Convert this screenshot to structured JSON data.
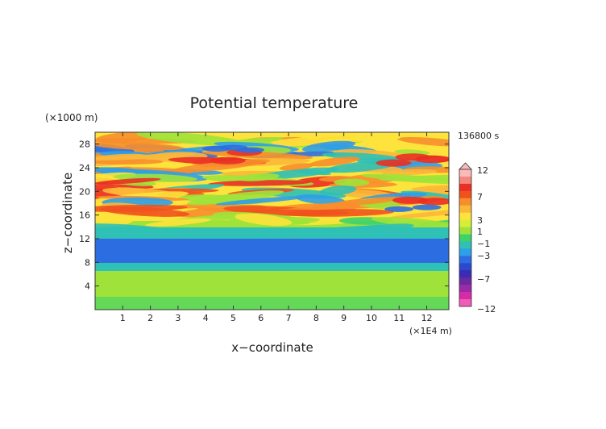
{
  "chart_data": {
    "type": "heatmap",
    "title": "Potential temperature",
    "xlabel": "x−coordinate",
    "ylabel": "z−coordinate",
    "x_unit": "(×1E4 m)",
    "y_unit": "(×1000 m)",
    "time_label": "136800 s",
    "xlim": [
      0,
      12.8
    ],
    "ylim": [
      0,
      30
    ],
    "x_ticks": [
      "1",
      "2",
      "3",
      "4",
      "5",
      "6",
      "7",
      "8",
      "9",
      "10",
      "11",
      "12"
    ],
    "y_ticks": [
      "4",
      "8",
      "12",
      "16",
      "20",
      "24",
      "28"
    ],
    "colorbar": {
      "levels": [
        "12",
        "7",
        "3",
        "1",
        "−1",
        "−3",
        "−7",
        "−12"
      ],
      "colors": [
        "#fbb9b9",
        "#f4877f",
        "#ea2f25",
        "#f0521d",
        "#f78e2c",
        "#fbb73a",
        "#fde33b",
        "#d7ee38",
        "#9fe23a",
        "#3dd26a",
        "#2fc0b6",
        "#2e9fe8",
        "#2d6de2",
        "#2b48cf",
        "#3a2cb4",
        "#6a2aa0",
        "#9c2aa6",
        "#d62aa8",
        "#f05cb8"
      ]
    },
    "z_rows_description": "bands by height",
    "grid": false
  }
}
